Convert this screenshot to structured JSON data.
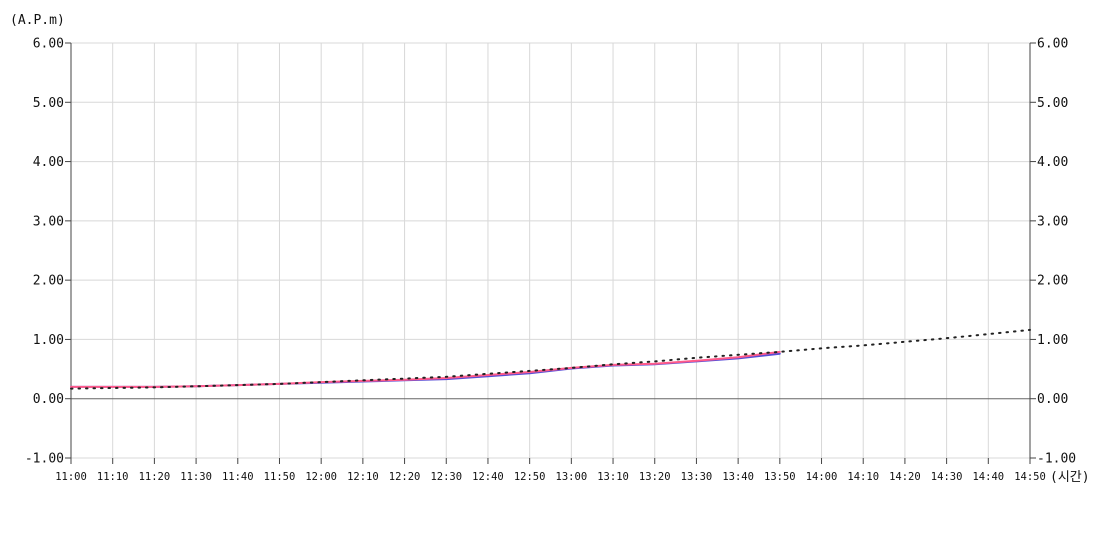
{
  "chart_data": {
    "type": "line",
    "ylabel": "(A.P.m)",
    "xlabel": "(시간)",
    "ylim": [
      -1.0,
      6.0
    ],
    "yticks": [
      "6.00",
      "5.00",
      "4.00",
      "3.00",
      "2.00",
      "1.00",
      "0.00",
      "-1.00"
    ],
    "ytick_values": [
      6,
      5,
      4,
      3,
      2,
      1,
      0,
      -1
    ],
    "x_categories": [
      "11:00",
      "11:10",
      "11:20",
      "11:30",
      "11:40",
      "11:50",
      "12:00",
      "12:10",
      "12:20",
      "12:30",
      "12:40",
      "12:50",
      "13:00",
      "13:10",
      "13:20",
      "13:30",
      "13:40",
      "13:50",
      "14:00",
      "14:10",
      "14:20",
      "14:30",
      "14:40",
      "14:50"
    ],
    "grid": true,
    "dual_y_axis": true,
    "series": [
      {
        "style": "solid",
        "color": "#5a4fd6",
        "x_index": [
          0,
          1,
          2,
          3,
          4,
          5,
          6,
          7,
          8,
          9,
          10,
          11,
          12,
          13,
          14,
          15,
          16,
          17
        ],
        "values": [
          0.2,
          0.2,
          0.2,
          0.21,
          0.23,
          0.25,
          0.27,
          0.29,
          0.31,
          0.33,
          0.38,
          0.43,
          0.51,
          0.56,
          0.58,
          0.63,
          0.68,
          0.76
        ]
      },
      {
        "style": "solid",
        "color": "#ff5a8a",
        "x_index": [
          0,
          1,
          2,
          3,
          4,
          5,
          6,
          7,
          8,
          9,
          10,
          11,
          12,
          13,
          14,
          15,
          16,
          17
        ],
        "values": [
          0.2,
          0.2,
          0.2,
          0.21,
          0.23,
          0.25,
          0.28,
          0.3,
          0.32,
          0.35,
          0.4,
          0.45,
          0.52,
          0.57,
          0.59,
          0.64,
          0.7,
          0.79
        ]
      },
      {
        "style": "dotted",
        "color": "#222222",
        "x_index": [
          0,
          1,
          2,
          3,
          4,
          5,
          6,
          7,
          8,
          9,
          10,
          11,
          12,
          13,
          14,
          15,
          16,
          17,
          18,
          19,
          20,
          21,
          22,
          23
        ],
        "values": [
          0.17,
          0.18,
          0.19,
          0.21,
          0.23,
          0.25,
          0.28,
          0.31,
          0.34,
          0.37,
          0.42,
          0.47,
          0.52,
          0.58,
          0.63,
          0.69,
          0.74,
          0.79,
          0.85,
          0.9,
          0.96,
          1.02,
          1.09,
          1.16
        ]
      }
    ]
  }
}
